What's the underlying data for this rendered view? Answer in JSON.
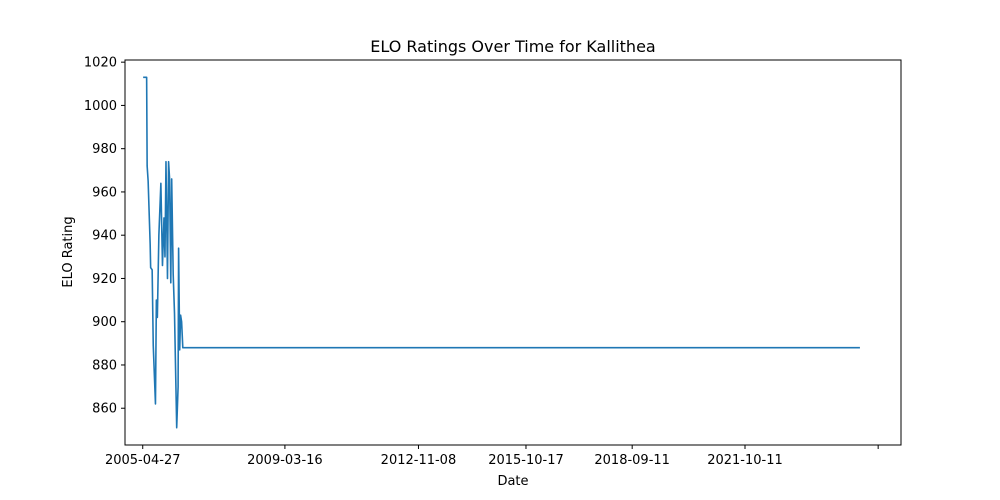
{
  "chart_data": {
    "type": "line",
    "title": "ELO Ratings Over Time for Kallithea",
    "xlabel": "Date",
    "ylabel": "ELO Rating",
    "x_tick_labels": [
      "2005-04-27",
      "2009-03-16",
      "2012-11-08",
      "2015-10-17",
      "2018-09-11",
      "2021-10-11",
      ""
    ],
    "x_ticks": [
      "2005-04-27",
      "2009-03-16",
      "2012-11-08",
      "2015-10-17",
      "2018-09-11",
      "2021-10-11",
      "2025-06-01"
    ],
    "y_ticks": [
      860,
      880,
      900,
      920,
      940,
      960,
      980,
      1000,
      1020
    ],
    "xlim": [
      "2004-11-01",
      "2026-01-15"
    ],
    "ylim": [
      843,
      1021
    ],
    "grid": false,
    "series": [
      {
        "color": "#1f77b4",
        "points": [
          [
            "2005-05-01",
            1013
          ],
          [
            "2005-06-05",
            1013
          ],
          [
            "2005-06-10",
            972
          ],
          [
            "2005-06-20",
            965
          ],
          [
            "2005-07-10",
            936
          ],
          [
            "2005-07-15",
            925
          ],
          [
            "2005-07-30",
            924
          ],
          [
            "2005-08-10",
            889
          ],
          [
            "2005-09-01",
            862
          ],
          [
            "2005-09-10",
            910
          ],
          [
            "2005-09-20",
            902
          ],
          [
            "2005-10-05",
            940
          ],
          [
            "2005-10-25",
            964
          ],
          [
            "2005-11-10",
            926
          ],
          [
            "2005-11-25",
            948
          ],
          [
            "2005-12-05",
            930
          ],
          [
            "2005-12-15",
            974
          ],
          [
            "2005-12-30",
            920
          ],
          [
            "2006-01-10",
            974
          ],
          [
            "2006-01-20",
            966
          ],
          [
            "2006-02-01",
            918
          ],
          [
            "2006-02-10",
            966
          ],
          [
            "2006-02-25",
            922
          ],
          [
            "2006-03-10",
            904
          ],
          [
            "2006-03-20",
            880
          ],
          [
            "2006-04-01",
            851
          ],
          [
            "2006-04-15",
            870
          ],
          [
            "2006-04-20",
            934
          ],
          [
            "2006-05-01",
            887
          ],
          [
            "2006-05-10",
            903
          ],
          [
            "2006-05-20",
            900
          ],
          [
            "2006-06-01",
            888
          ],
          [
            "2024-12-01",
            888
          ]
        ]
      }
    ]
  }
}
